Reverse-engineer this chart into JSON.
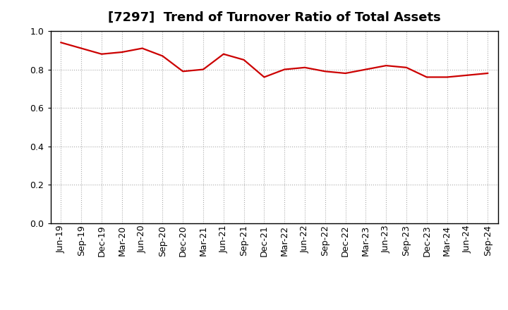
{
  "title": "[7297]  Trend of Turnover Ratio of Total Assets",
  "x_labels": [
    "Jun-19",
    "Sep-19",
    "Dec-19",
    "Mar-20",
    "Jun-20",
    "Sep-20",
    "Dec-20",
    "Mar-21",
    "Jun-21",
    "Sep-21",
    "Dec-21",
    "Mar-22",
    "Jun-22",
    "Sep-22",
    "Dec-22",
    "Mar-23",
    "Jun-23",
    "Sep-23",
    "Dec-23",
    "Mar-24",
    "Jun-24",
    "Sep-24"
  ],
  "y_values": [
    0.94,
    0.91,
    0.88,
    0.89,
    0.91,
    0.87,
    0.79,
    0.8,
    0.88,
    0.85,
    0.76,
    0.8,
    0.81,
    0.79,
    0.78,
    0.8,
    0.82,
    0.81,
    0.76,
    0.76,
    0.77,
    0.78
  ],
  "line_color": "#cc0000",
  "line_width": 1.6,
  "ylim": [
    0.0,
    1.0
  ],
  "yticks": [
    0.0,
    0.2,
    0.4,
    0.6,
    0.8,
    1.0
  ],
  "grid_color": "#aaaaaa",
  "background_color": "#ffffff",
  "title_fontsize": 13,
  "tick_fontsize": 9,
  "title_color": "#000000"
}
